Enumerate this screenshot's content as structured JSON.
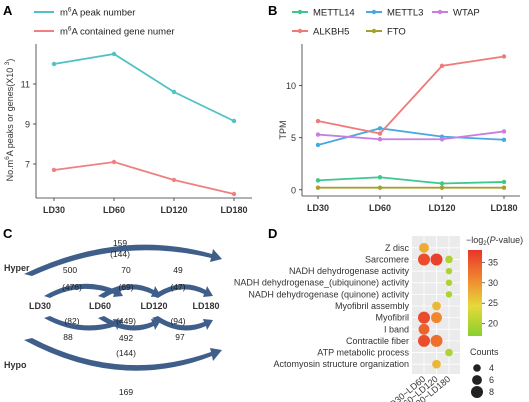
{
  "panels": {
    "a": "A",
    "b": "B",
    "c": "C",
    "d": "D"
  },
  "chart_data": [
    {
      "panel": "A",
      "type": "line",
      "x": [
        "LD30",
        "LD60",
        "LD120",
        "LD180"
      ],
      "ylabel": "No.m6A peaks or genes(X10 3)",
      "ylabel_parts": {
        "pre": "No.m",
        "sup1": "6",
        "mid": "A peaks or genes(X10 ",
        "sup2": "3",
        ")": ")"
      },
      "yticks": [
        "7",
        "9",
        "11"
      ],
      "ylim": [
        5.3,
        13.0
      ],
      "series": [
        {
          "name": "m6A peak number",
          "name_parts": [
            "m",
            "6",
            "A peak number"
          ],
          "color": "#4fc2c4",
          "values": [
            12.0,
            12.5,
            10.6,
            9.15
          ]
        },
        {
          "name": "m6A contained gene numer",
          "name_parts": [
            "m",
            "6",
            "A contained gene numer"
          ],
          "color": "#f08080",
          "values": [
            6.7,
            7.1,
            6.2,
            5.5
          ]
        }
      ]
    },
    {
      "panel": "B",
      "type": "line",
      "x": [
        "LD30",
        "LD60",
        "LD120",
        "LD180"
      ],
      "ylabel": "TPM",
      "yticks": [
        "0",
        "5",
        "10"
      ],
      "ylim": [
        -0.6,
        14.0
      ],
      "series": [
        {
          "name": "METTL14",
          "color": "#3dc78e",
          "values": [
            0.9,
            1.2,
            0.6,
            0.75
          ]
        },
        {
          "name": "METTL3",
          "color": "#4aa8e0",
          "values": [
            4.3,
            5.9,
            5.1,
            4.8
          ]
        },
        {
          "name": "WTAP",
          "color": "#c77ee0",
          "values": [
            5.3,
            4.85,
            4.85,
            5.6
          ]
        },
        {
          "name": "ALKBH5",
          "color": "#ef7b78",
          "values": [
            6.6,
            5.4,
            11.9,
            12.8
          ]
        },
        {
          "name": "FTO",
          "color": "#a6a02a",
          "values": [
            0.2,
            0.2,
            0.2,
            0.2
          ]
        }
      ]
    },
    {
      "panel": "C",
      "type": "diagram",
      "groups": {
        "hyper": "Hyper",
        "hypo": "Hypo"
      },
      "nodes": [
        "LD30",
        "LD60",
        "LD120",
        "LD180"
      ],
      "hyper": {
        "span": {
          "value": "159",
          "paren": "(144)"
        },
        "pairs": [
          {
            "value": "500",
            "paren": "(476)"
          },
          {
            "value": "70",
            "paren": "(69)"
          },
          {
            "value": "49",
            "paren": "(47)"
          }
        ]
      },
      "hypo": {
        "span": {
          "value": "169",
          "paren": "(144)"
        },
        "pairs": [
          {
            "value": "88",
            "paren": "(82)"
          },
          {
            "value": "492",
            "paren": "(449)"
          },
          {
            "value": "97",
            "paren": "(94)"
          }
        ]
      }
    },
    {
      "panel": "D",
      "type": "scatter",
      "categories": [
        "LD30~LD60",
        "LD60~LD120",
        "LD120~LD180"
      ],
      "terms": [
        "Z disc",
        "Sarcomere",
        "NADH dehydrogenase activity",
        "NADH dehydrogenase_(ubiquinone) activity",
        "NADH dehydrogenase (quinone) activity",
        "Myofibril assembly",
        "Myofibril",
        "I band",
        "Contractile fiber",
        "ATP metabolic process",
        "Actomyosin structure organization"
      ],
      "points": [
        {
          "term": 0,
          "cat": 0,
          "count": 6,
          "value": 28
        },
        {
          "term": 1,
          "cat": 0,
          "count": 8,
          "value": 36
        },
        {
          "term": 1,
          "cat": 1,
          "count": 8,
          "value": 37
        },
        {
          "term": 1,
          "cat": 2,
          "count": 4,
          "value": 20
        },
        {
          "term": 2,
          "cat": 2,
          "count": 3,
          "value": 20
        },
        {
          "term": 3,
          "cat": 2,
          "count": 3,
          "value": 20
        },
        {
          "term": 4,
          "cat": 2,
          "count": 3,
          "value": 20
        },
        {
          "term": 5,
          "cat": 1,
          "count": 5,
          "value": 27
        },
        {
          "term": 6,
          "cat": 0,
          "count": 8,
          "value": 36
        },
        {
          "term": 6,
          "cat": 1,
          "count": 7,
          "value": 31
        },
        {
          "term": 7,
          "cat": 0,
          "count": 7,
          "value": 34
        },
        {
          "term": 8,
          "cat": 0,
          "count": 8,
          "value": 36
        },
        {
          "term": 8,
          "cat": 1,
          "count": 8,
          "value": 33
        },
        {
          "term": 9,
          "cat": 2,
          "count": 4,
          "value": 20
        },
        {
          "term": 10,
          "cat": 1,
          "count": 5,
          "value": 27
        }
      ],
      "colorbar": {
        "title": "-log2(P-value)",
        "title_parts": [
          "−log",
          "2",
          "(",
          "P",
          "-value)"
        ],
        "ticks": [
          "35",
          "30",
          "25",
          "20"
        ],
        "range": [
          17,
          38
        ]
      },
      "size_legend": {
        "title": "Counts",
        "values": [
          "4",
          "6",
          "8"
        ]
      }
    }
  ]
}
